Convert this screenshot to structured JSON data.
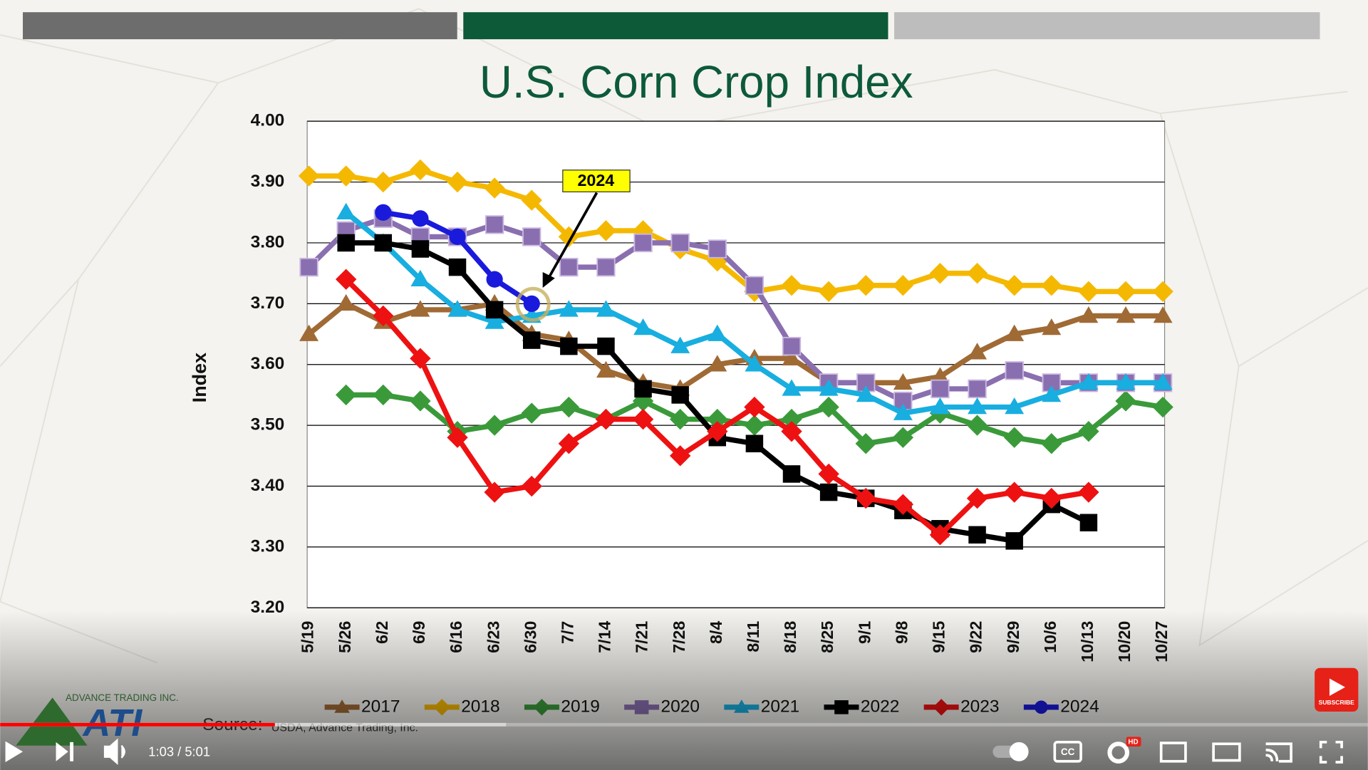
{
  "chart_data": {
    "type": "line",
    "title": "U.S. Corn Crop Index",
    "y_label": "Index",
    "categories": [
      "5/19",
      "5/26",
      "6/2",
      "6/9",
      "6/16",
      "6/23",
      "6/30",
      "7/7",
      "7/14",
      "7/21",
      "7/28",
      "8/4",
      "8/11",
      "8/18",
      "8/25",
      "9/1",
      "9/8",
      "9/15",
      "9/22",
      "9/29",
      "10/6",
      "10/13",
      "10/20",
      "10/27"
    ],
    "ylim": [
      3.2,
      4.0
    ],
    "yticks": [
      {
        "value": 3.2,
        "label": "3.20"
      },
      {
        "value": 3.3,
        "label": "3.30"
      },
      {
        "value": 3.4,
        "label": "3.40"
      },
      {
        "value": 3.5,
        "label": "3.50"
      },
      {
        "value": 3.6,
        "label": "3.60"
      },
      {
        "value": 3.7,
        "label": "3.70"
      },
      {
        "value": 3.8,
        "label": "3.80"
      },
      {
        "value": 3.9,
        "label": "3.90"
      },
      {
        "value": 4.0,
        "label": "4.00"
      }
    ],
    "grid": true,
    "legend": "bottom",
    "series": [
      {
        "name": "2017",
        "color": "#a06a35",
        "marker": "triangle",
        "values": [
          3.65,
          3.7,
          3.67,
          3.69,
          3.69,
          3.7,
          3.65,
          3.64,
          3.59,
          3.57,
          3.56,
          3.6,
          3.61,
          3.61,
          3.57,
          3.57,
          3.57,
          3.58,
          3.62,
          3.65,
          3.66,
          3.68,
          3.68,
          3.68
        ]
      },
      {
        "name": "2018",
        "color": "#f5b800",
        "marker": "diamond",
        "values": [
          3.91,
          3.91,
          3.9,
          3.92,
          3.9,
          3.89,
          3.87,
          3.81,
          3.82,
          3.82,
          3.79,
          3.77,
          3.72,
          3.73,
          3.72,
          3.73,
          3.73,
          3.75,
          3.75,
          3.73,
          3.73,
          3.72,
          3.72,
          3.72
        ]
      },
      {
        "name": "2019",
        "color": "#3a9a3a",
        "marker": "diamond",
        "values": [
          null,
          3.55,
          3.55,
          3.54,
          3.49,
          3.5,
          3.52,
          3.53,
          3.51,
          3.54,
          3.51,
          3.51,
          3.5,
          3.51,
          3.53,
          3.47,
          3.48,
          3.52,
          3.5,
          3.48,
          3.47,
          3.49,
          3.54,
          3.53
        ]
      },
      {
        "name": "2020",
        "color": "#8a6fb0",
        "marker": "square",
        "values": [
          3.76,
          3.82,
          3.84,
          3.81,
          3.81,
          3.83,
          3.81,
          3.76,
          3.76,
          3.8,
          3.8,
          3.79,
          3.73,
          3.63,
          3.57,
          3.57,
          3.54,
          3.56,
          3.56,
          3.59,
          3.57,
          3.57,
          3.57,
          3.57
        ]
      },
      {
        "name": "2021",
        "color": "#18aee0",
        "marker": "triangle",
        "values": [
          null,
          3.85,
          3.8,
          3.74,
          3.69,
          3.67,
          3.68,
          3.69,
          3.69,
          3.66,
          3.63,
          3.65,
          3.6,
          3.56,
          3.56,
          3.55,
          3.52,
          3.53,
          3.53,
          3.53,
          3.55,
          3.57,
          3.57,
          3.57
        ]
      },
      {
        "name": "2022",
        "color": "#000000",
        "marker": "square",
        "values": [
          null,
          3.8,
          3.8,
          3.79,
          3.76,
          3.69,
          3.64,
          3.63,
          3.63,
          3.56,
          3.55,
          3.48,
          3.47,
          3.42,
          3.39,
          3.38,
          3.36,
          3.33,
          3.32,
          3.31,
          3.37,
          3.34,
          null,
          null
        ]
      },
      {
        "name": "2023",
        "color": "#ee1111",
        "marker": "diamond",
        "values": [
          null,
          3.74,
          3.68,
          3.61,
          3.48,
          3.39,
          3.4,
          3.47,
          3.51,
          3.51,
          3.45,
          3.49,
          3.53,
          3.49,
          3.42,
          3.38,
          3.37,
          3.32,
          3.38,
          3.39,
          3.38,
          3.39,
          null,
          null
        ]
      },
      {
        "name": "2024",
        "color": "#1a1adc",
        "marker": "circle",
        "values": [
          null,
          null,
          3.85,
          3.84,
          3.81,
          3.74,
          3.7,
          null,
          null,
          null,
          null,
          null,
          null,
          null,
          null,
          null,
          null,
          null,
          null,
          null,
          null,
          null,
          null,
          null
        ]
      }
    ],
    "annotation": "2024"
  },
  "overlay": {
    "company": "ADVANCE TRADING INC.",
    "logo": "ATI",
    "source_label": "Source:",
    "source": "USDA, Advance Trading, Inc.",
    "subscribe": "SUBSCRIBE"
  },
  "player": {
    "time": "1:03 / 5:01",
    "cc": "CC",
    "hd": "HD"
  }
}
